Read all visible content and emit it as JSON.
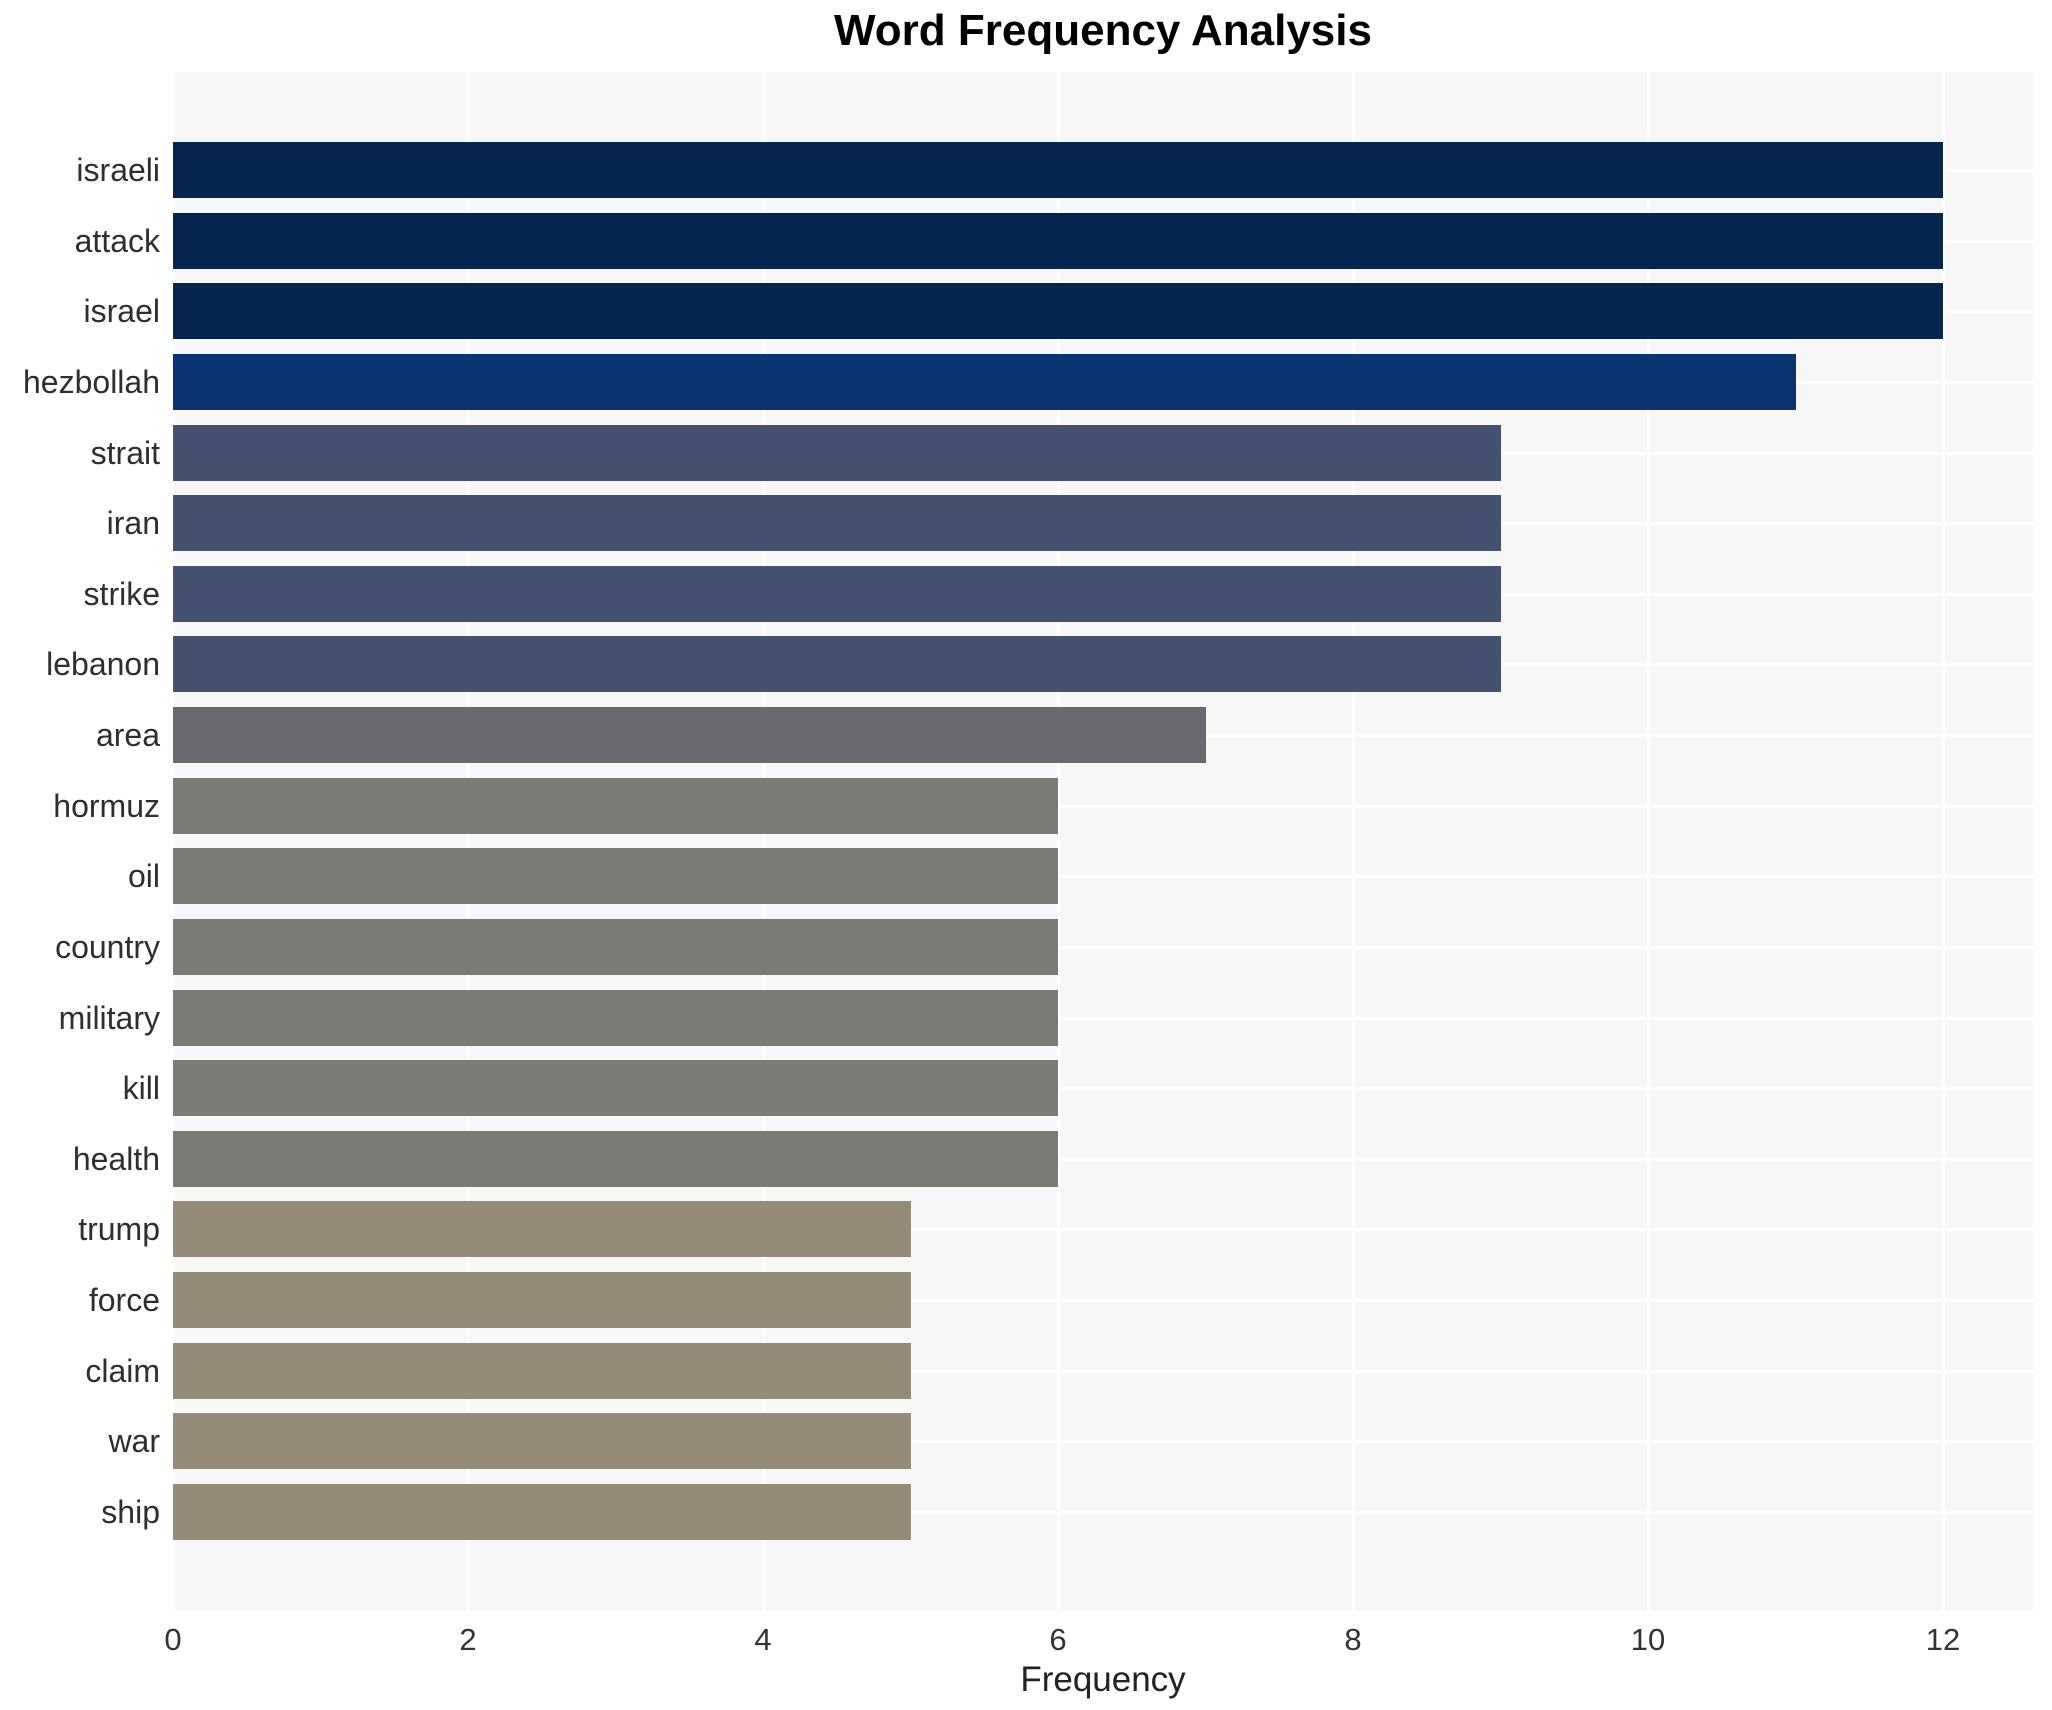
{
  "chart_data": {
    "type": "bar",
    "orientation": "horizontal",
    "title": "Word Frequency Analysis",
    "xlabel": "Frequency",
    "ylabel": "",
    "categories": [
      "israeli",
      "attack",
      "israel",
      "hezbollah",
      "strait",
      "iran",
      "strike",
      "lebanon",
      "area",
      "hormuz",
      "oil",
      "country",
      "military",
      "kill",
      "health",
      "trump",
      "force",
      "claim",
      "war",
      "ship"
    ],
    "values": [
      12,
      12,
      12,
      11,
      9,
      9,
      9,
      9,
      7,
      6,
      6,
      6,
      6,
      6,
      6,
      5,
      5,
      5,
      5,
      5
    ],
    "bar_colors": [
      "#03254e",
      "#03254e",
      "#03254e",
      "#0a3572",
      "#455170",
      "#455170",
      "#455170",
      "#455170",
      "#696a6e",
      "#7b7a76",
      "#7b7a76",
      "#7b7a76",
      "#7b7a76",
      "#7b7a76",
      "#7b7a76",
      "#948c78",
      "#948c78",
      "#948c78",
      "#948c78",
      "#948c78"
    ],
    "xticks": [
      0,
      2,
      4,
      6,
      8,
      10,
      12
    ],
    "xlim": [
      0,
      12.61
    ],
    "grid": true,
    "legend": "none",
    "plot_background": "#f7f7f7",
    "grid_color": "#ffffff",
    "text_color": "#2e2e2e",
    "title_color": "#000000"
  }
}
